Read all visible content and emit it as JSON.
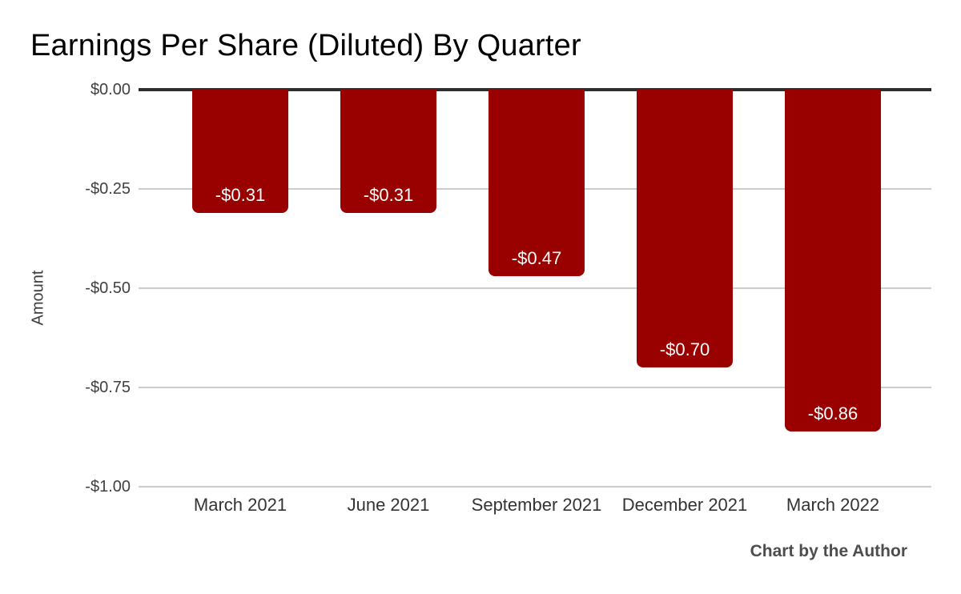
{
  "title": "Earnings Per Share (Diluted) By Quarter",
  "y_axis_title": "Amount",
  "credit": "Chart by the Author",
  "colors": {
    "bar": "#990000",
    "zero_line": "#2e2e2e",
    "gridline": "#cccccc",
    "bar_label_text": "#ffffff"
  },
  "chart_data": {
    "type": "bar",
    "title": "Earnings Per Share (Diluted) By Quarter",
    "xlabel": "",
    "ylabel": "Amount",
    "categories": [
      "March 2021",
      "June 2021",
      "September 2021",
      "December 2021",
      "March 2022"
    ],
    "values": [
      -0.31,
      -0.31,
      -0.47,
      -0.7,
      -0.86
    ],
    "value_labels": [
      "-$0.31",
      "-$0.31",
      "-$0.47",
      "-$0.70",
      "-$0.86"
    ],
    "y_ticks": [
      "$0.00",
      "-$0.25",
      "-$0.50",
      "-$0.75",
      "-$1.00"
    ],
    "y_tick_values": [
      0,
      -0.25,
      -0.5,
      -0.75,
      -1.0
    ],
    "ylim": [
      -1.0,
      0
    ],
    "bar_color": "#990000",
    "grid": true,
    "legend": "none",
    "annotation": "Chart by the Author"
  }
}
